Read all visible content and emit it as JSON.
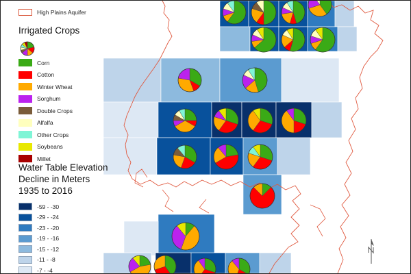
{
  "legend": {
    "aquifer_label": "High Plains Aquifer",
    "crops_title": "Irrigated Crops",
    "crops": [
      {
        "label": "Corn",
        "color": "#3aaa16"
      },
      {
        "label": "Cotton",
        "color": "#ff0000"
      },
      {
        "label": "Winter Wheat",
        "color": "#ffaa00"
      },
      {
        "label": "Sorghum",
        "color": "#bb22ee"
      },
      {
        "label": "Double Crops",
        "color": "#7a5c3a"
      },
      {
        "label": "Alfalfa",
        "color": "#ffffbe"
      },
      {
        "label": "Other Crops",
        "color": "#7ff5d6"
      },
      {
        "label": "Soybeans",
        "color": "#e8e800"
      },
      {
        "label": "Millet",
        "color": "#a80000"
      }
    ],
    "decline_title_lines": [
      "Water Table Elevation",
      "Decline in Meters",
      "1935 to 2016"
    ],
    "decline_classes": [
      {
        "label": "-59 - -30",
        "color": "#08306b"
      },
      {
        "label": "-29 - -24",
        "color": "#08519c"
      },
      {
        "label": "-23 - -20",
        "color": "#2f7bc0"
      },
      {
        "label": "-19 - -16",
        "color": "#5b9bd0"
      },
      {
        "label": "-15 - -12",
        "color": "#8dbade"
      },
      {
        "label": "-11 - -8",
        "color": "#bed4ea"
      },
      {
        "label": "-7 - -4",
        "color": "#dde8f4"
      }
    ]
  },
  "colors": {
    "aquifer_outline": "#e05a40",
    "pie_outline": "#333333"
  }
}
